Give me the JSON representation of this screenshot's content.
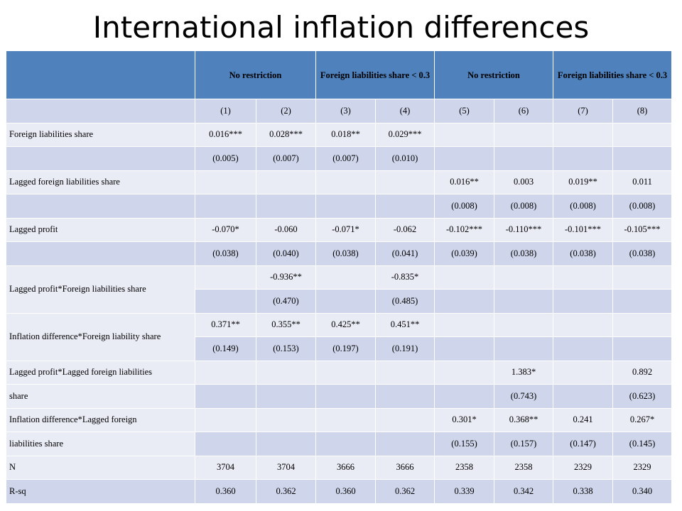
{
  "title": "International inflation differences",
  "header": {
    "groups": [
      "No restriction",
      "Foreign liabilities share < 0.3",
      "No restriction",
      "Foreign liabilities share < 0.3"
    ]
  },
  "column_numbers": [
    "(1)",
    "(2)",
    "(3)",
    "(4)",
    "(5)",
    "(6)",
    "(7)",
    "(8)"
  ],
  "rows": {
    "fls": {
      "label": "Foreign liabilities share",
      "coef": [
        "0.016***",
        "0.028***",
        "0.018**",
        "0.029***",
        "",
        "",
        "",
        ""
      ],
      "se": [
        "(0.005)",
        "(0.007)",
        "(0.007)",
        "(0.010)",
        "",
        "",
        "",
        ""
      ]
    },
    "lfls": {
      "label": "Lagged foreign liabilities share",
      "coef": [
        "",
        "",
        "",
        "",
        "0.016**",
        "0.003",
        "0.019**",
        "0.011"
      ],
      "se": [
        "",
        "",
        "",
        "",
        "(0.008)",
        "(0.008)",
        "(0.008)",
        "(0.008)"
      ]
    },
    "lp": {
      "label": "Lagged profit",
      "coef": [
        "-0.070*",
        "-0.060",
        "-0.071*",
        "-0.062",
        "-0.102***",
        "-0.110***",
        "-0.101***",
        "-0.105***"
      ],
      "se": [
        "(0.038)",
        "(0.040)",
        "(0.038)",
        "(0.041)",
        "(0.039)",
        "(0.038)",
        "(0.038)",
        "(0.038)"
      ]
    },
    "lpfls": {
      "label": "Lagged profit*Foreign liabilities share",
      "coef": [
        "",
        "-0.936**",
        "",
        "-0.835*",
        "",
        "",
        "",
        ""
      ],
      "se": [
        "",
        "(0.470)",
        "",
        "(0.485)",
        "",
        "",
        "",
        ""
      ]
    },
    "idfls": {
      "label": "Inflation difference*Foreign liability share",
      "coef": [
        "0.371**",
        "0.355**",
        "0.425**",
        "0.451**",
        "",
        "",
        "",
        ""
      ],
      "se": [
        "(0.149)",
        "(0.153)",
        "(0.197)",
        "(0.191)",
        "",
        "",
        "",
        ""
      ]
    },
    "lplfls": {
      "label_line1": "Lagged profit*Lagged foreign liabilities",
      "label_line2": "share",
      "coef": [
        "",
        "",
        "",
        "",
        "",
        "1.383*",
        "",
        "0.892"
      ],
      "se": [
        "",
        "",
        "",
        "",
        "",
        "(0.743)",
        "",
        "(0.623)"
      ]
    },
    "idlfls": {
      "label_line1": "Inflation difference*Lagged foreign",
      "label_line2": "liabilities share",
      "coef": [
        "",
        "",
        "",
        "",
        "0.301*",
        "0.368**",
        "0.241",
        "0.267*"
      ],
      "se": [
        "",
        "",
        "",
        "",
        "(0.155)",
        "(0.157)",
        "(0.147)",
        "(0.145)"
      ]
    },
    "n": {
      "label": "N",
      "values": [
        "3704",
        "3704",
        "3666",
        "3666",
        "2358",
        "2358",
        "2329",
        "2329"
      ]
    },
    "rsq": {
      "label": "R-sq",
      "values": [
        "0.360",
        "0.362",
        "0.360",
        "0.362",
        "0.339",
        "0.342",
        "0.338",
        "0.340"
      ]
    }
  }
}
